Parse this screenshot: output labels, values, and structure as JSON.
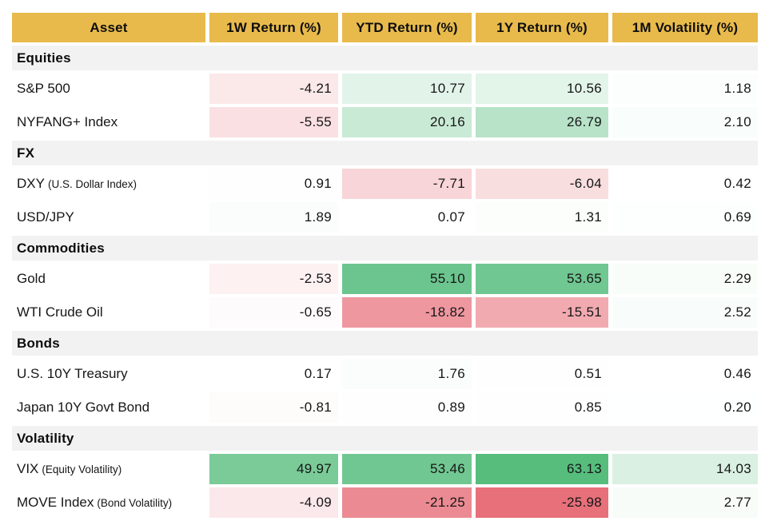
{
  "table": {
    "columns": [
      "Asset",
      "1W Return (%)",
      "YTD Return (%)",
      "1Y Return (%)",
      "1M Volatility (%)"
    ],
    "sections": [
      {
        "label": "Equities",
        "rows": [
          {
            "asset": "S&P 500",
            "note": "",
            "values": [
              "-4.21",
              "10.77",
              "10.56",
              "1.18"
            ]
          },
          {
            "asset": "NYFANG+ Index",
            "note": "",
            "values": [
              "-5.55",
              "20.16",
              "26.79",
              "2.10"
            ]
          }
        ]
      },
      {
        "label": "FX",
        "rows": [
          {
            "asset": "DXY",
            "note": "(U.S. Dollar Index)",
            "values": [
              "0.91",
              "-7.71",
              "-6.04",
              "0.42"
            ]
          },
          {
            "asset": "USD/JPY",
            "note": "",
            "values": [
              "1.89",
              "0.07",
              "1.31",
              "0.69"
            ]
          }
        ]
      },
      {
        "label": "Commodities",
        "rows": [
          {
            "asset": "Gold",
            "note": "",
            "values": [
              "-2.53",
              "55.10",
              "53.65",
              "2.29"
            ]
          },
          {
            "asset": "WTI Crude Oil",
            "note": "",
            "values": [
              "-0.65",
              "-18.82",
              "-15.51",
              "2.52"
            ]
          }
        ]
      },
      {
        "label": "Bonds",
        "rows": [
          {
            "asset": "U.S. 10Y Treasury",
            "note": "",
            "values": [
              "0.17",
              "1.76",
              "0.51",
              "0.46"
            ]
          },
          {
            "asset": "Japan 10Y Govt Bond",
            "note": "",
            "values": [
              "-0.81",
              "0.89",
              "0.85",
              "0.20"
            ]
          }
        ]
      },
      {
        "label": "Volatility",
        "rows": [
          {
            "asset": "VIX",
            "note": "(Equity Volatility)",
            "values": [
              "49.97",
              "53.46",
              "63.13",
              "14.03"
            ]
          },
          {
            "asset": "MOVE Index",
            "note": "(Bond Volatility)",
            "values": [
              "-4.09",
              "-21.25",
              "-25.98",
              "2.77"
            ]
          }
        ]
      }
    ]
  },
  "heatmap": {
    "vmax": 63.13,
    "vmin": -25.98,
    "positive_color": "#57BD7D",
    "negative_color": "#E7707A",
    "neutral_color": "#FFFFFF"
  },
  "colors": {
    "header_bg": "#E8BA4B",
    "header_text": "#0D0D0D",
    "section_bg": "#F2F2F2",
    "body_text": "#161616",
    "page_bg": "#FFFFFF"
  }
}
